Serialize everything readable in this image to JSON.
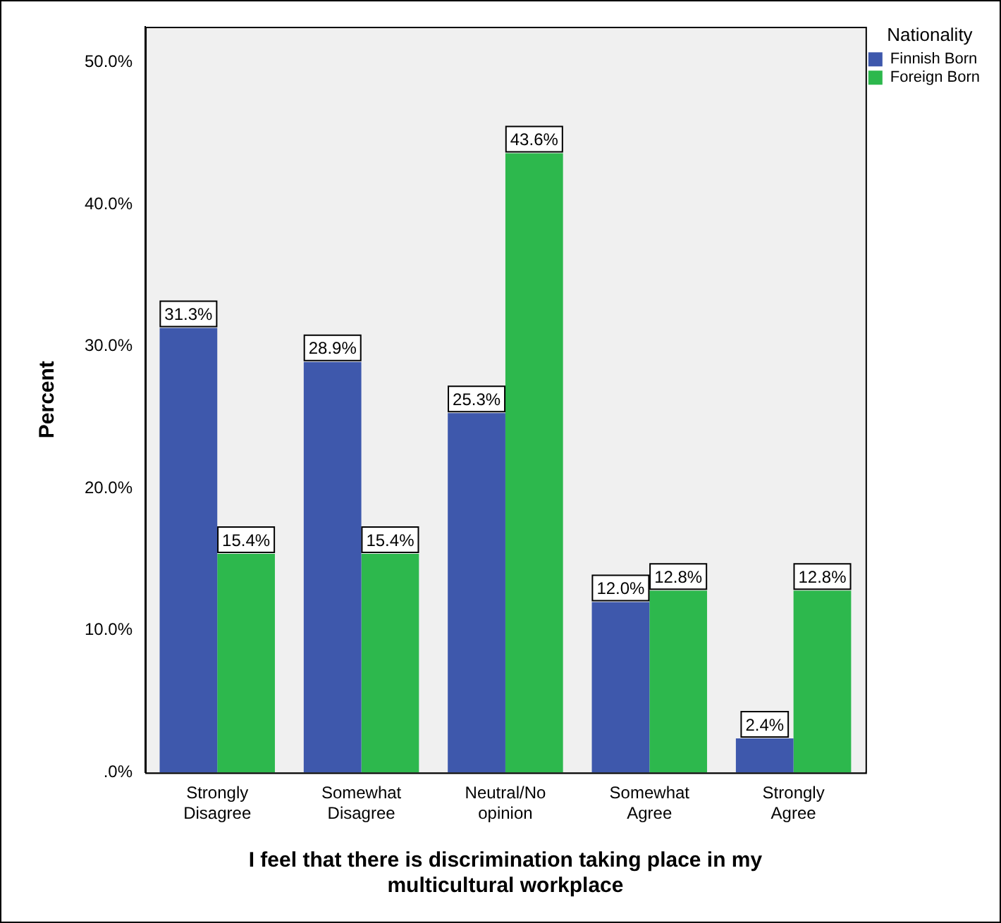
{
  "chart_data": {
    "type": "bar",
    "xlabel": "I feel that there is discrimination taking place in my multicultural workplace",
    "ylabel": "Percent",
    "legend_title": "Nationality",
    "legend": "top right",
    "categories": [
      "Strongly Disagree",
      "Somewhat Disagree",
      "Neutral/No opinion",
      "Somewhat Agree",
      "Strongly Agree"
    ],
    "series": [
      {
        "name": "Finnish Born",
        "color": "#3e58ac",
        "values": [
          31.3,
          28.9,
          25.3,
          12.0,
          2.4
        ],
        "value_labels": [
          "31.3%",
          "28.9%",
          "25.3%",
          "12.0%",
          "2.4%"
        ]
      },
      {
        "name": "Foreign Born",
        "color": "#2db84d",
        "values": [
          15.4,
          15.4,
          43.6,
          12.8,
          12.8
        ],
        "value_labels": [
          "15.4%",
          "15.4%",
          "43.6%",
          "12.8%",
          "12.8%"
        ]
      }
    ],
    "ylim": [
      0,
      52.5
    ],
    "yticks": [
      {
        "value": 0,
        "label": ".0%"
      },
      {
        "value": 10,
        "label": "10.0%"
      },
      {
        "value": 20,
        "label": "20.0%"
      },
      {
        "value": 30,
        "label": "30.0%"
      },
      {
        "value": 40,
        "label": "40.0%"
      },
      {
        "value": 50,
        "label": "50.0%"
      }
    ],
    "grid": false
  }
}
